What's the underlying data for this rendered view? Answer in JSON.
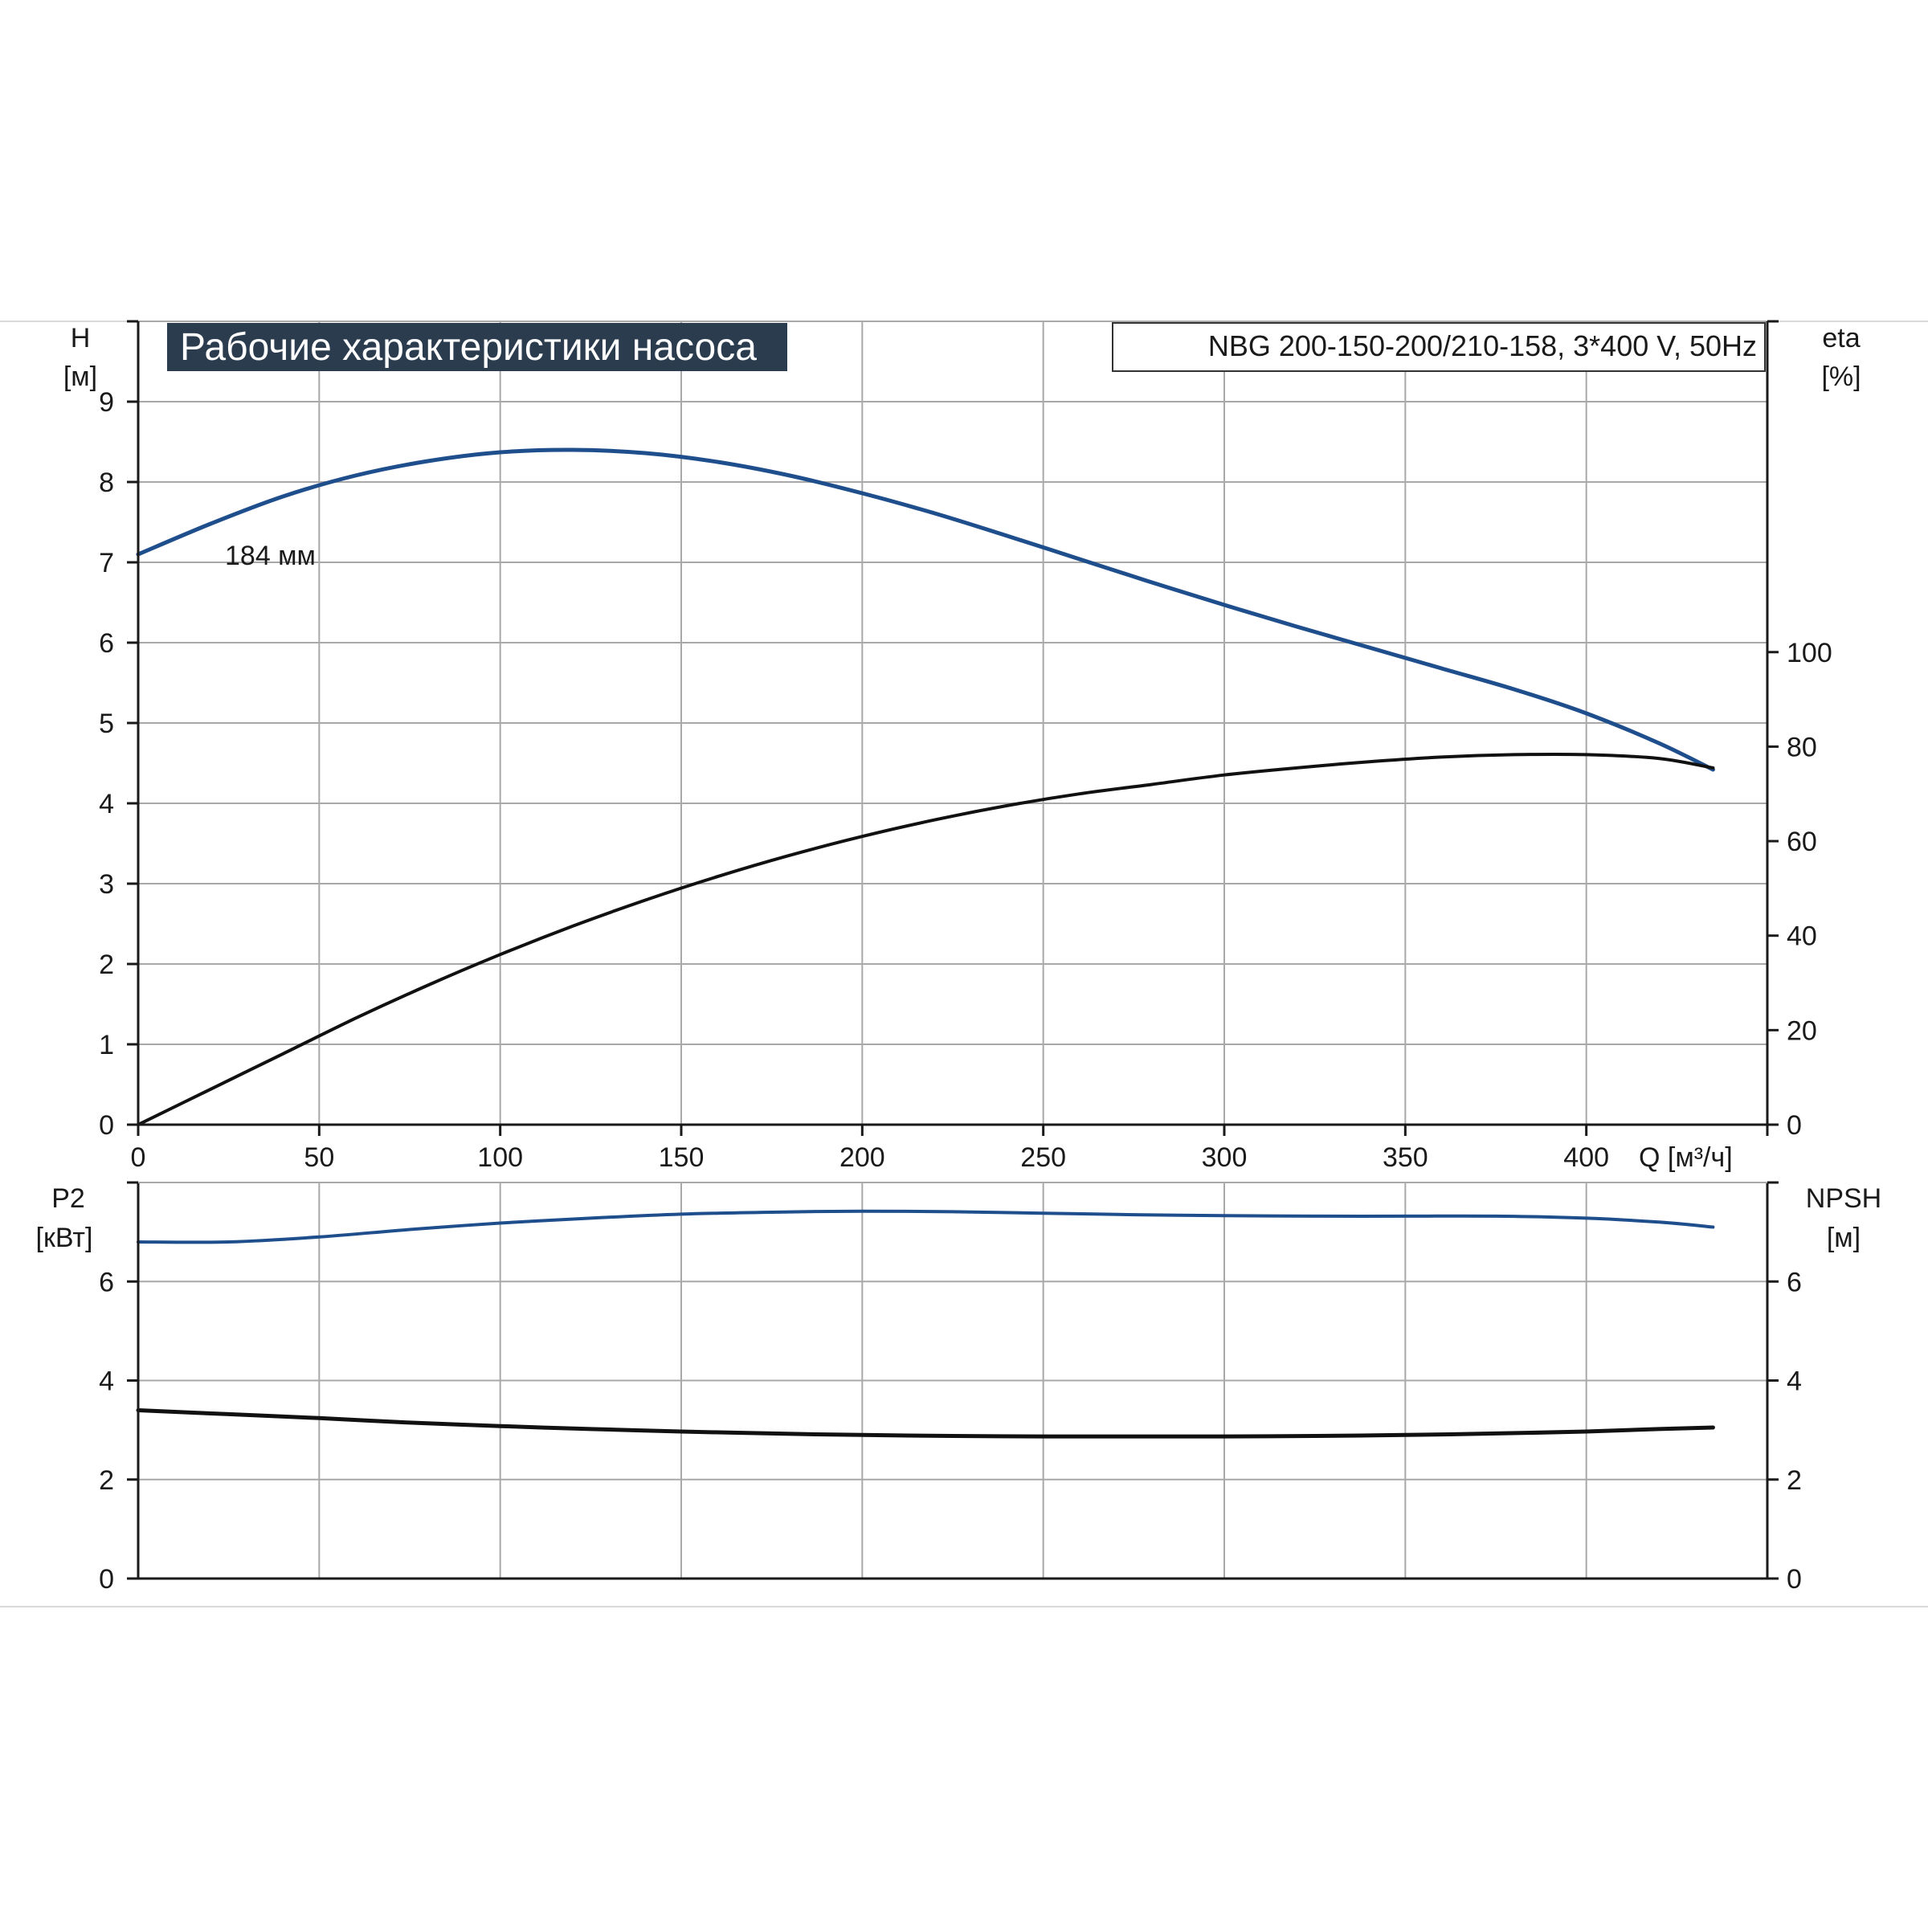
{
  "chart_data": [
    {
      "type": "line",
      "title": "Рабочие характеристики насоса",
      "subtitle": "NBG 200-150-200/210-158, 3*400 V, 50Hz",
      "xlabel": "Q [м³/ч]",
      "xlim": [
        0,
        450
      ],
      "xticks": [
        0,
        50,
        100,
        150,
        200,
        250,
        300,
        350,
        400
      ],
      "y_left": {
        "label_line1": "H",
        "label_line2": "[м]",
        "ylim": [
          0,
          10
        ],
        "ticks": [
          0,
          1,
          2,
          3,
          4,
          5,
          6,
          7,
          8,
          9
        ]
      },
      "y_right": {
        "label_line1": "eta",
        "label_line2": "[%]",
        "ylim": [
          0,
          170
        ],
        "ticks": [
          0,
          20,
          40,
          60,
          80,
          100
        ]
      },
      "grid": true,
      "annotations": [
        {
          "text": "184 мм",
          "x": 26,
          "y": 7.7
        }
      ],
      "series": [
        {
          "axis": "left",
          "color": "#1f4e8c",
          "x": [
            0,
            20,
            40,
            60,
            80,
            100,
            120,
            140,
            160,
            180,
            200,
            220,
            240,
            260,
            280,
            300,
            320,
            340,
            360,
            380,
            400,
            420,
            435
          ],
          "y": [
            7.1,
            7.48,
            7.82,
            8.08,
            8.26,
            8.37,
            8.4,
            8.36,
            8.25,
            8.08,
            7.86,
            7.61,
            7.33,
            7.04,
            6.75,
            6.47,
            6.2,
            5.94,
            5.68,
            5.42,
            5.12,
            4.75,
            4.42
          ]
        },
        {
          "axis": "right",
          "color": "#111111",
          "x": [
            0,
            20,
            40,
            60,
            80,
            100,
            120,
            140,
            160,
            180,
            200,
            220,
            240,
            260,
            280,
            300,
            320,
            340,
            360,
            380,
            400,
            420,
            435
          ],
          "y": [
            0,
            7.5,
            15,
            22.5,
            29.5,
            36,
            42,
            47.5,
            52.5,
            57,
            61,
            64.5,
            67.5,
            70,
            72,
            74,
            75.5,
            76.8,
            77.8,
            78.3,
            78.3,
            77.5,
            75.5
          ]
        }
      ]
    },
    {
      "type": "line",
      "xlim": [
        0,
        450
      ],
      "y_left": {
        "label_line1": "P2",
        "label_line2": "[кВт]",
        "ylim": [
          0,
          8
        ],
        "ticks": [
          0,
          2,
          4,
          6
        ]
      },
      "y_right": {
        "label_line1": "NPSH",
        "label_line2": "[м]",
        "ylim": [
          0,
          8
        ],
        "ticks": [
          0,
          2,
          4,
          6
        ]
      },
      "grid": true,
      "series": [
        {
          "axis": "left",
          "color": "#1f4e8c",
          "x": [
            0,
            25,
            50,
            75,
            100,
            125,
            150,
            175,
            200,
            225,
            250,
            275,
            300,
            325,
            350,
            375,
            400,
            420,
            435
          ],
          "y": [
            6.8,
            6.8,
            6.9,
            7.05,
            7.18,
            7.28,
            7.36,
            7.4,
            7.42,
            7.41,
            7.38,
            7.35,
            7.33,
            7.32,
            7.32,
            7.32,
            7.28,
            7.2,
            7.1
          ]
        },
        {
          "axis": "right",
          "color": "#111111",
          "x": [
            0,
            25,
            50,
            75,
            100,
            125,
            150,
            175,
            200,
            225,
            250,
            275,
            300,
            325,
            350,
            375,
            400,
            420,
            435
          ],
          "y": [
            3.4,
            3.32,
            3.24,
            3.15,
            3.08,
            3.02,
            2.97,
            2.93,
            2.9,
            2.88,
            2.87,
            2.87,
            2.87,
            2.88,
            2.9,
            2.93,
            2.97,
            3.02,
            3.05
          ]
        }
      ]
    }
  ]
}
